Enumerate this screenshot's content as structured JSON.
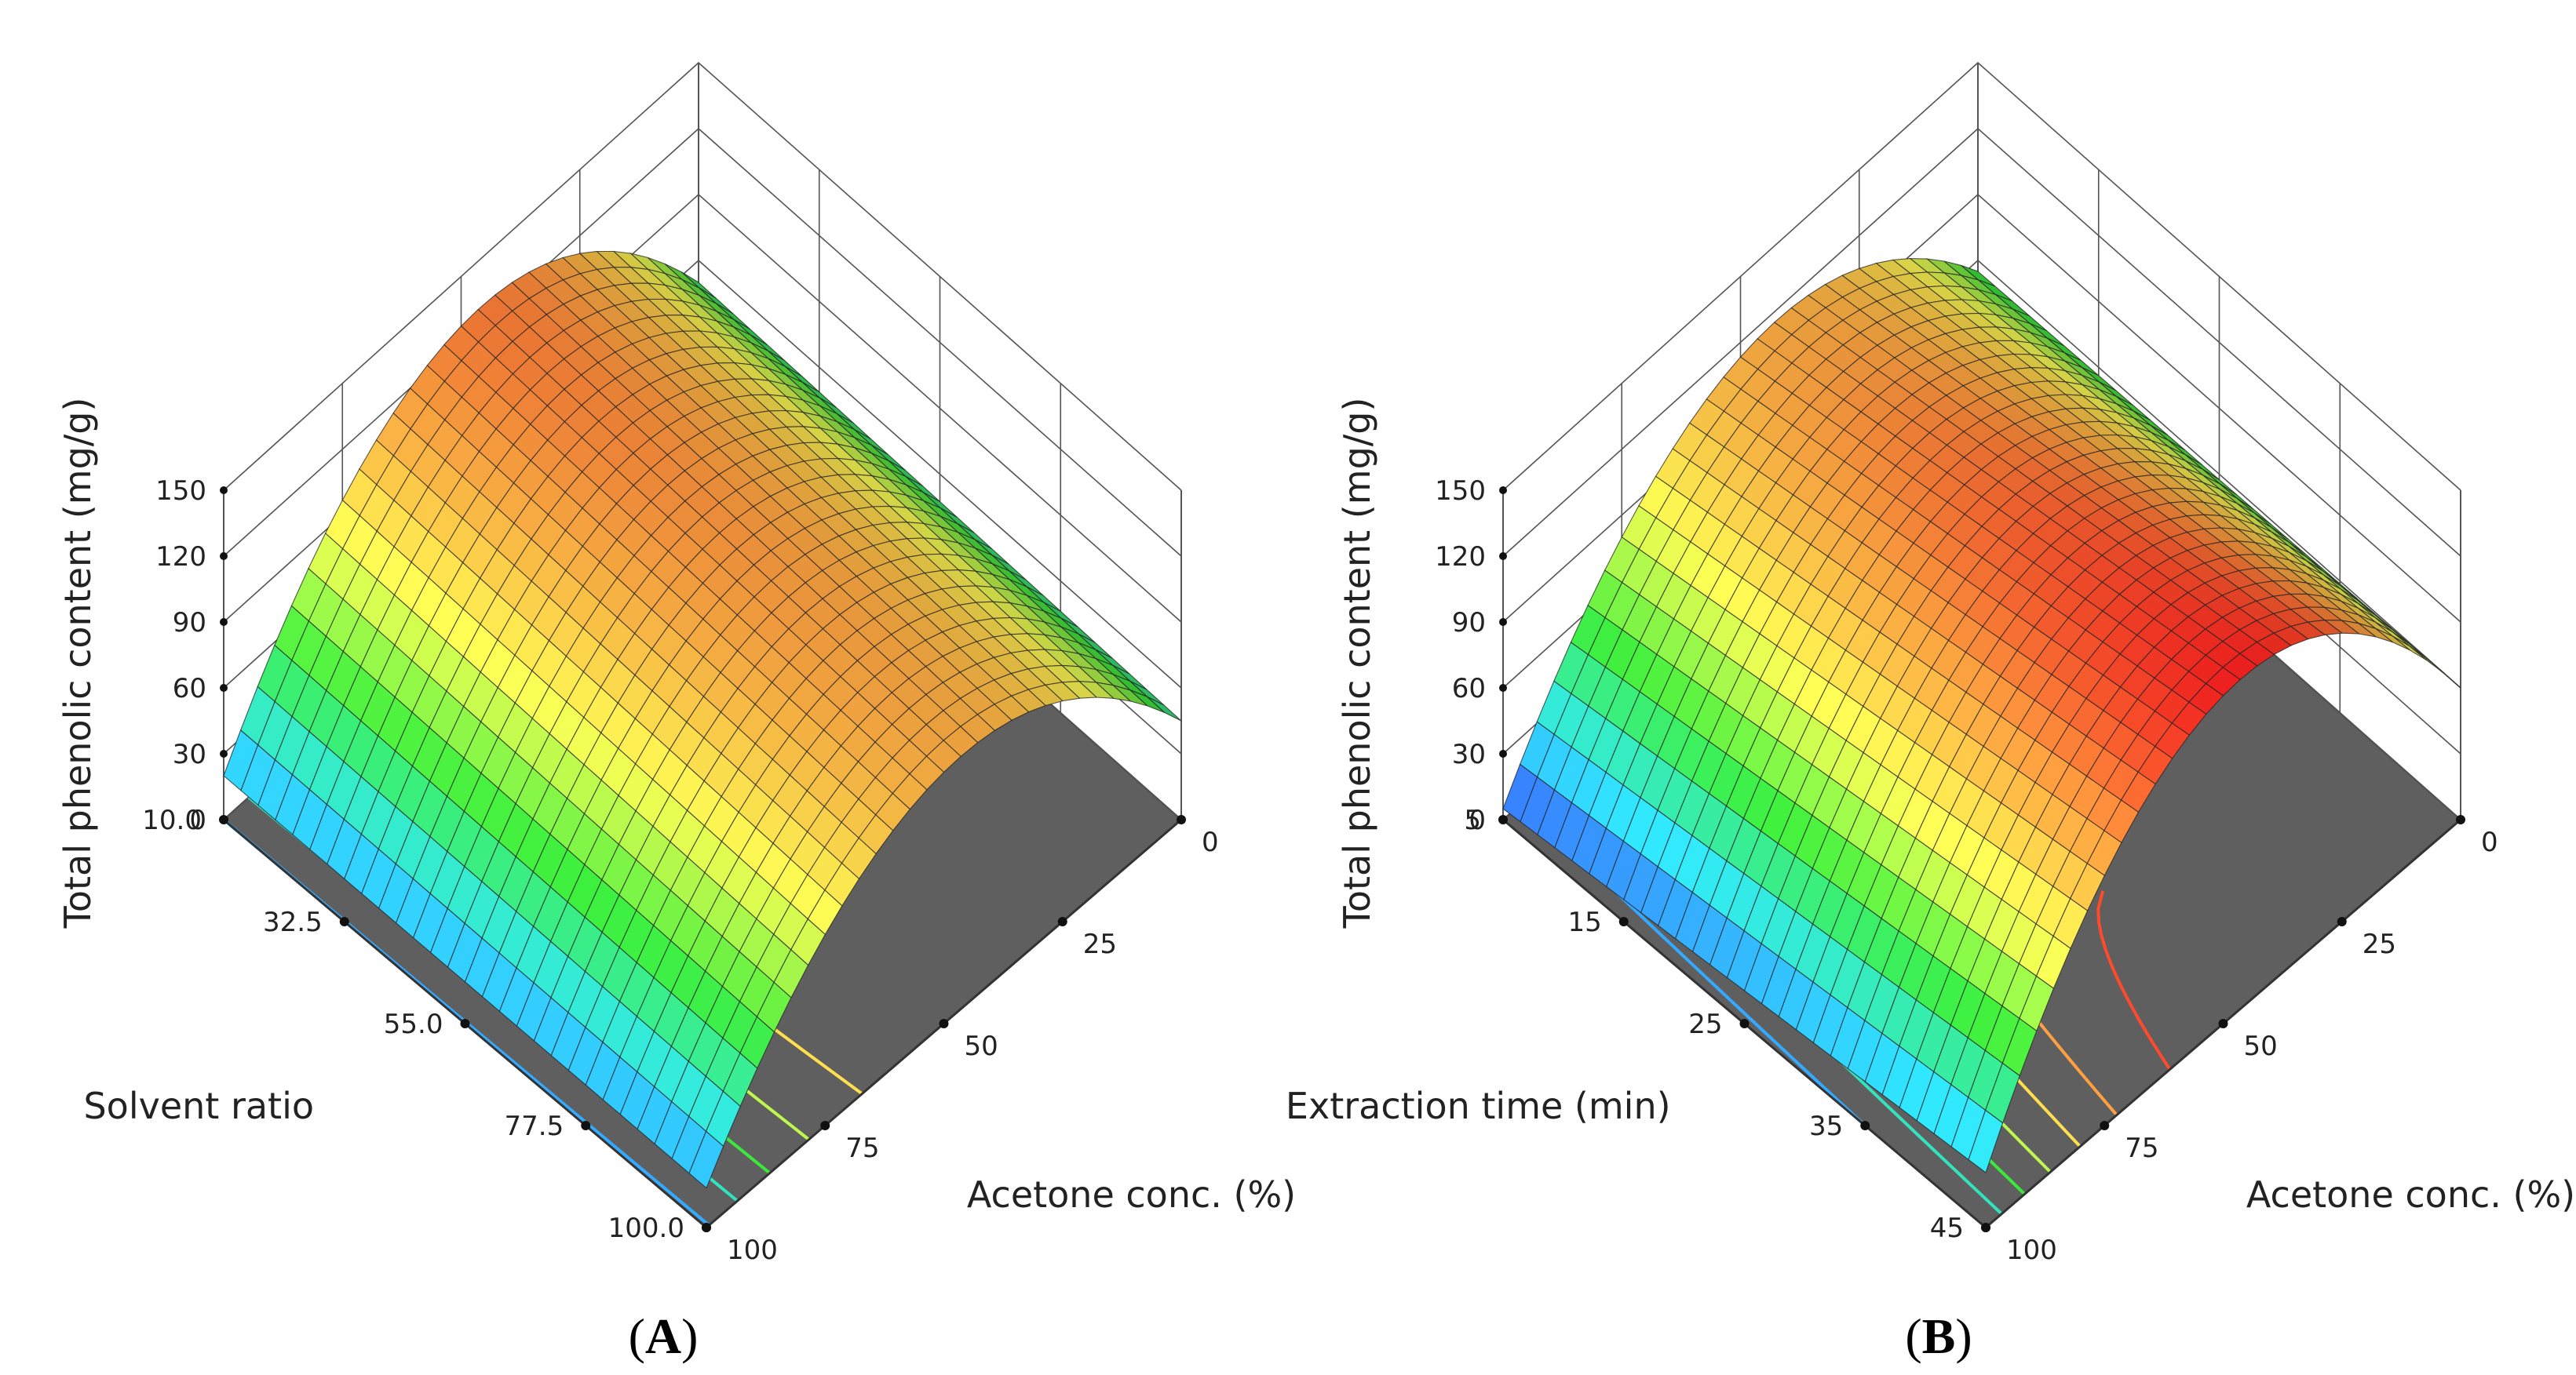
{
  "figure": {
    "panels": [
      "A",
      "B"
    ]
  },
  "chart_data": [
    {
      "type": "surface3d",
      "panel_label": "A",
      "title": "",
      "zlabel": "Total phenolic content (mg/g)",
      "zlim": [
        0,
        150
      ],
      "zticks": [
        "0",
        "30",
        "60",
        "90",
        "120",
        "150"
      ],
      "xaxis": {
        "label": "Solvent ratio",
        "ticks": [
          "10.0",
          "32.5",
          "55.0",
          "77.5",
          "100.0"
        ],
        "range": [
          10,
          100
        ]
      },
      "yaxis": {
        "label": "Acetone conc. (%)",
        "ticks": [
          "0",
          "25",
          "50",
          "75",
          "100"
        ],
        "range": [
          0,
          100
        ]
      },
      "surface": {
        "model": "quadratic",
        "description": "response peaks near 40-50% acetone, decreases mildly with solvent ratio",
        "at_0_acetone_ratio10": 50,
        "at_peak_ratio10": 128,
        "at_100_acetone_ratio10": 20,
        "at_0_acetone_ratio100": 45,
        "at_peak_ratio100": 115,
        "at_100_acetone_ratio100": 18
      },
      "colormap": [
        "#3a3dff",
        "#2fe0ff",
        "#3ce83c",
        "#ffff55",
        "#ffa040",
        "#ff2020"
      ]
    },
    {
      "type": "surface3d",
      "panel_label": "B",
      "title": "",
      "zlabel": "Total phenolic content (mg/g)",
      "zlim": [
        0,
        150
      ],
      "zticks": [
        "0",
        "30",
        "60",
        "90",
        "120",
        "150"
      ],
      "xaxis": {
        "label": "Extraction time (min)",
        "ticks": [
          "5",
          "15",
          "25",
          "35",
          "45"
        ],
        "range": [
          5,
          45
        ]
      },
      "yaxis": {
        "label": "Acetone conc. (%)",
        "ticks": [
          "0",
          "25",
          "50",
          "75",
          "100"
        ],
        "range": [
          0,
          100
        ]
      },
      "surface": {
        "model": "quadratic",
        "description": "response peaks near 40-50% acetone, increases with extraction time",
        "at_0_acetone_time5": 55,
        "at_peak_time5": 115,
        "at_100_acetone_time5": 5,
        "at_0_acetone_time45": 60,
        "at_peak_time45": 150,
        "at_100_acetone_time45": 25
      },
      "colormap": [
        "#3a3dff",
        "#2fe0ff",
        "#3ce83c",
        "#ffff55",
        "#ffa040",
        "#ff2020"
      ]
    }
  ]
}
